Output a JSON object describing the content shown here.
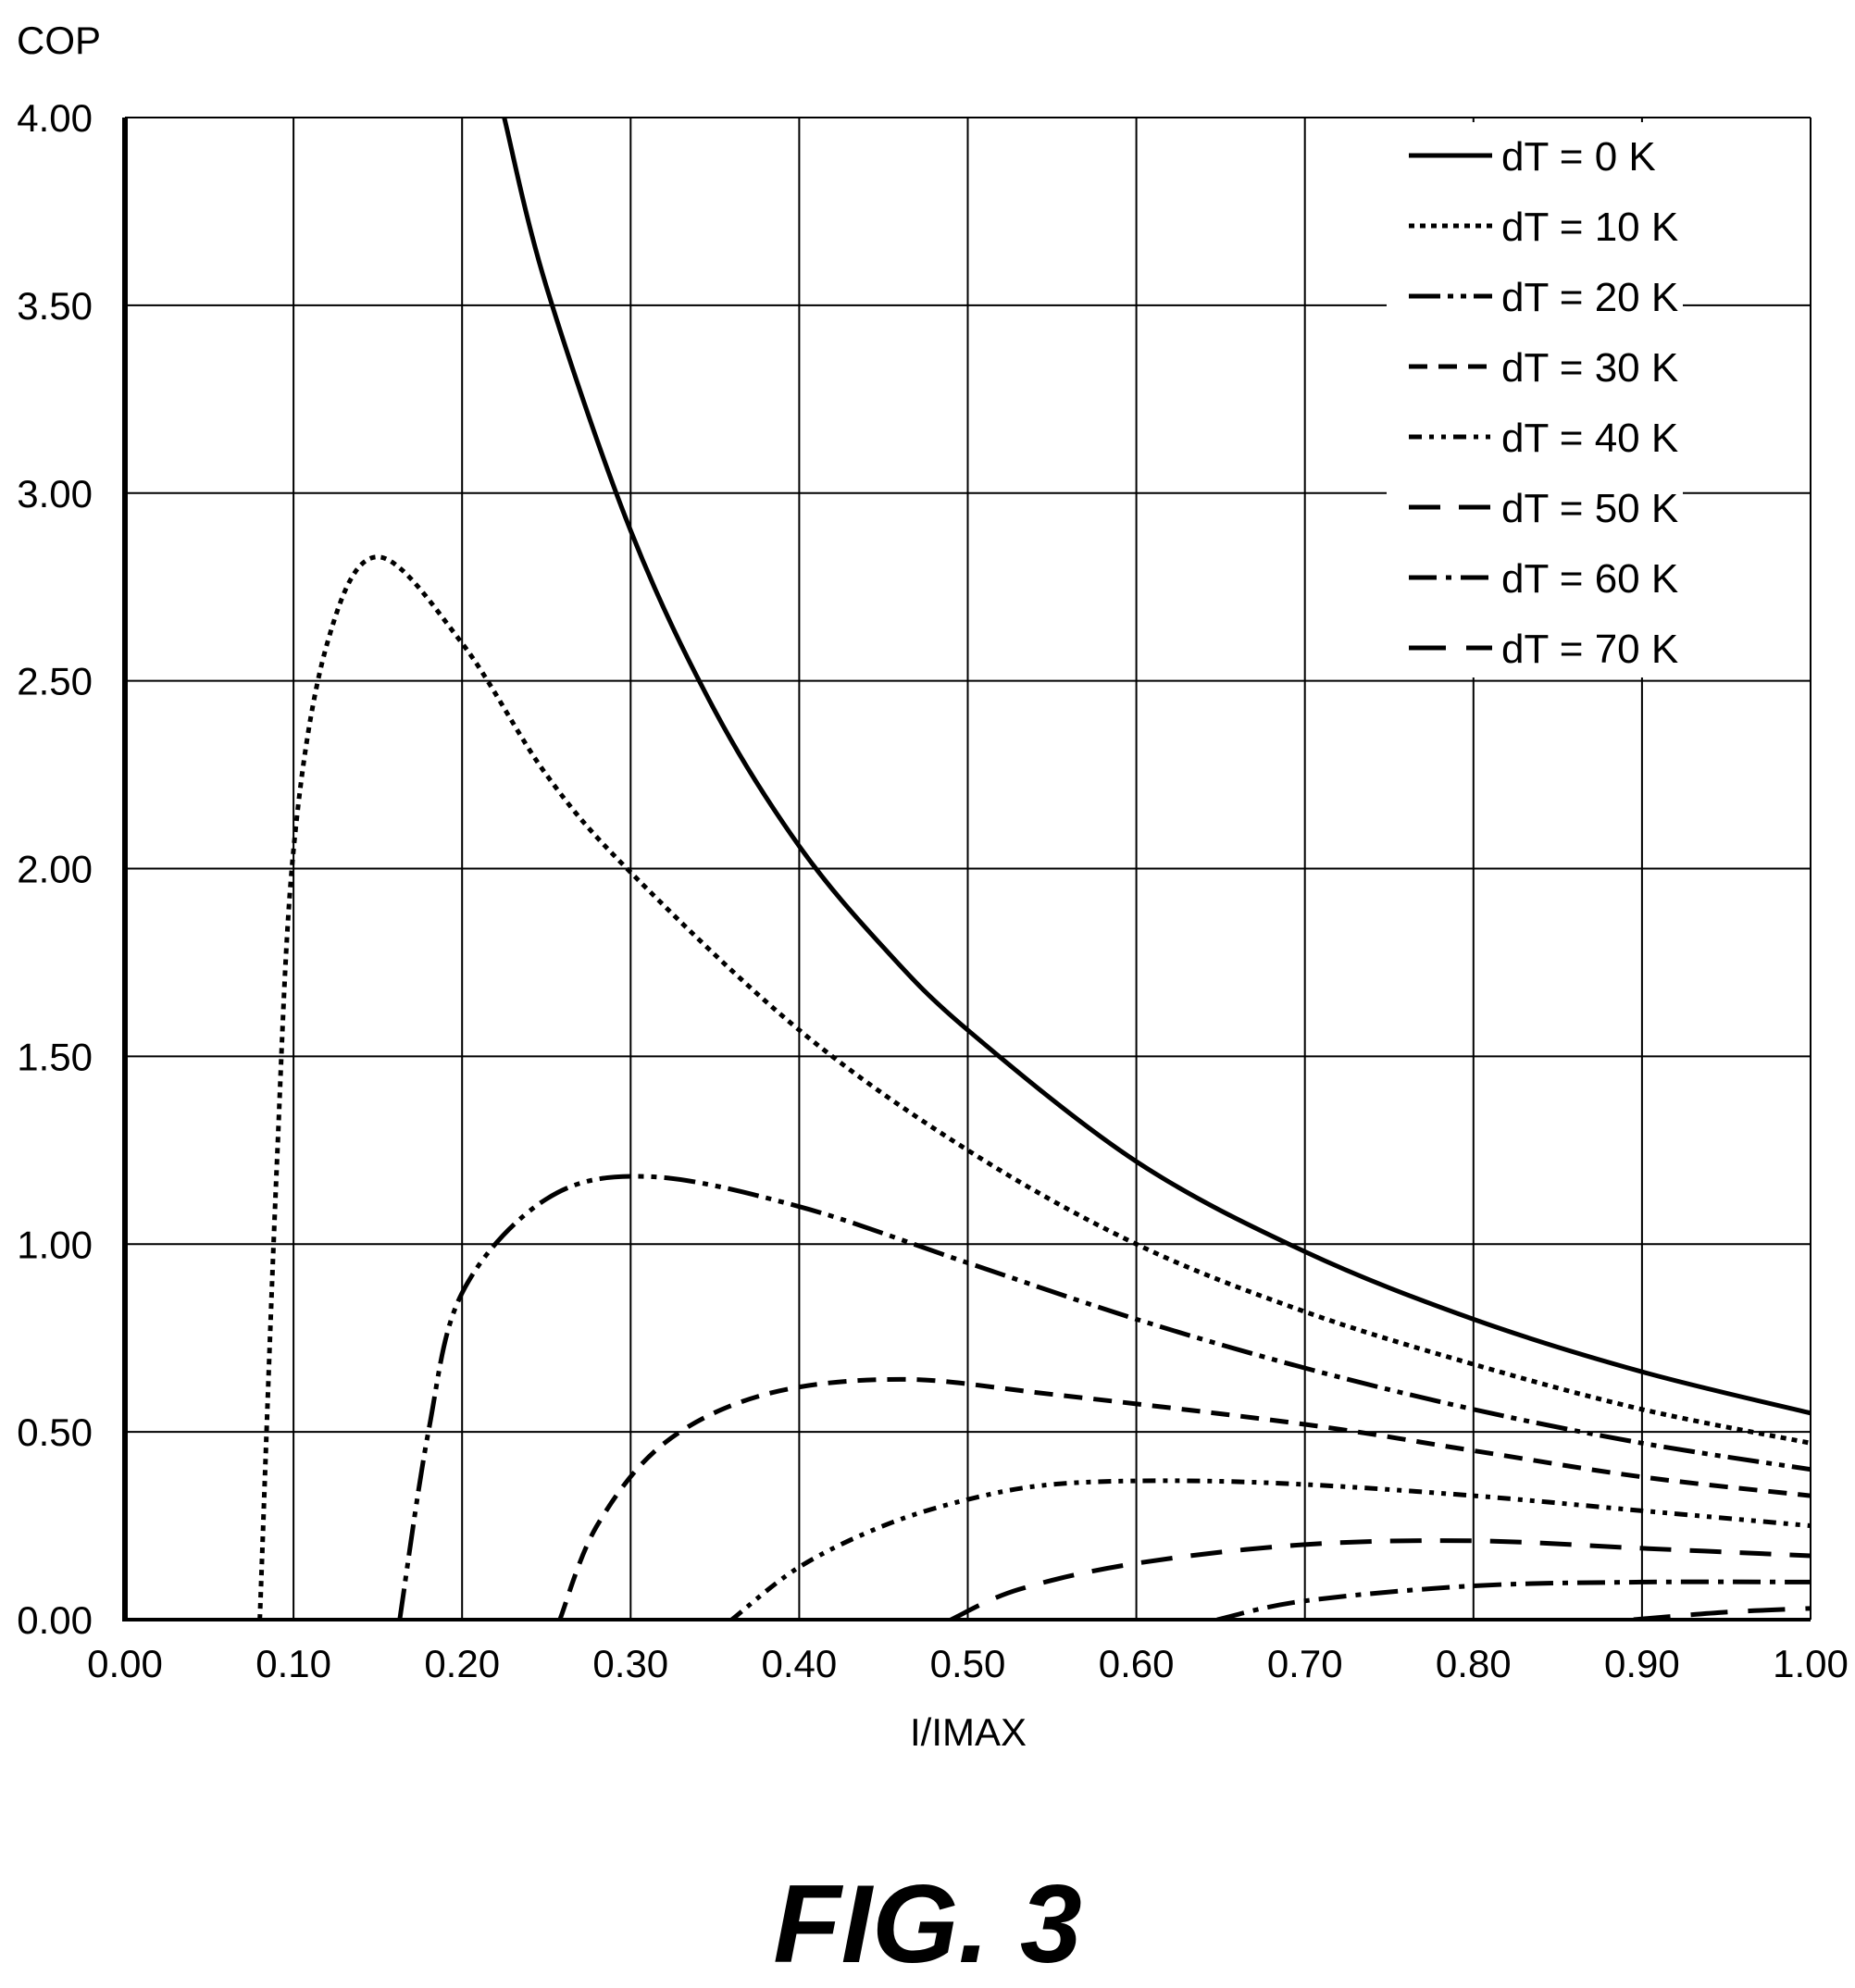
{
  "figure_caption": "FIG. 3",
  "chart_data": {
    "type": "line",
    "title": "",
    "xlabel": "I/IMAX",
    "ylabel": "COP",
    "xlim": [
      0,
      1
    ],
    "ylim": [
      0,
      4
    ],
    "x_ticks": [
      "0.00",
      "0.10",
      "0.20",
      "0.30",
      "0.40",
      "0.50",
      "0.60",
      "0.70",
      "0.80",
      "0.90",
      "1.00"
    ],
    "y_ticks": [
      "0.00",
      "0.50",
      "1.00",
      "1.50",
      "2.00",
      "2.50",
      "3.00",
      "3.50",
      "4.00"
    ],
    "grid": true,
    "legend_position": "top-right",
    "series": [
      {
        "name": "dT = 0 K",
        "style": "solid",
        "points": [
          [
            0.225,
            4.0
          ],
          [
            0.25,
            3.55
          ],
          [
            0.3,
            2.9
          ],
          [
            0.35,
            2.42
          ],
          [
            0.4,
            2.06
          ],
          [
            0.45,
            1.79
          ],
          [
            0.5,
            1.57
          ],
          [
            0.6,
            1.22
          ],
          [
            0.7,
            0.98
          ],
          [
            0.8,
            0.8
          ],
          [
            0.9,
            0.66
          ],
          [
            1.0,
            0.55
          ]
        ]
      },
      {
        "name": "dT = 10 K",
        "style": "dotted",
        "points": [
          [
            0.08,
            0.0
          ],
          [
            0.09,
            1.2
          ],
          [
            0.1,
            2.05
          ],
          [
            0.12,
            2.6
          ],
          [
            0.15,
            2.83
          ],
          [
            0.2,
            2.6
          ],
          [
            0.25,
            2.25
          ],
          [
            0.3,
            1.99
          ],
          [
            0.4,
            1.57
          ],
          [
            0.5,
            1.25
          ],
          [
            0.6,
            1.0
          ],
          [
            0.7,
            0.82
          ],
          [
            0.8,
            0.68
          ],
          [
            0.9,
            0.56
          ],
          [
            1.0,
            0.47
          ]
        ]
      },
      {
        "name": "dT = 20 K",
        "style": "dash-dot-dot",
        "points": [
          [
            0.163,
            0.0
          ],
          [
            0.18,
            0.5
          ],
          [
            0.2,
            0.87
          ],
          [
            0.25,
            1.12
          ],
          [
            0.31,
            1.18
          ],
          [
            0.4,
            1.1
          ],
          [
            0.5,
            0.95
          ],
          [
            0.6,
            0.8
          ],
          [
            0.7,
            0.67
          ],
          [
            0.8,
            0.56
          ],
          [
            0.9,
            0.47
          ],
          [
            1.0,
            0.4
          ]
        ]
      },
      {
        "name": "dT = 30 K",
        "style": "dashed",
        "points": [
          [
            0.258,
            0.0
          ],
          [
            0.28,
            0.25
          ],
          [
            0.32,
            0.47
          ],
          [
            0.38,
            0.6
          ],
          [
            0.46,
            0.64
          ],
          [
            0.55,
            0.6
          ],
          [
            0.7,
            0.52
          ],
          [
            0.8,
            0.45
          ],
          [
            0.9,
            0.38
          ],
          [
            1.0,
            0.33
          ]
        ]
      },
      {
        "name": "dT = 40 K",
        "style": "dash-dot-dot-short",
        "points": [
          [
            0.36,
            0.0
          ],
          [
            0.4,
            0.14
          ],
          [
            0.45,
            0.25
          ],
          [
            0.5,
            0.32
          ],
          [
            0.55,
            0.36
          ],
          [
            0.62,
            0.37
          ],
          [
            0.7,
            0.36
          ],
          [
            0.8,
            0.33
          ],
          [
            0.9,
            0.29
          ],
          [
            1.0,
            0.25
          ]
        ]
      },
      {
        "name": "dT = 50 K",
        "style": "long-dash",
        "points": [
          [
            0.49,
            0.0
          ],
          [
            0.53,
            0.08
          ],
          [
            0.6,
            0.15
          ],
          [
            0.7,
            0.2
          ],
          [
            0.8,
            0.21
          ],
          [
            0.9,
            0.19
          ],
          [
            1.0,
            0.17
          ]
        ]
      },
      {
        "name": "dT = 60 K",
        "style": "dash-dot",
        "points": [
          [
            0.648,
            0.0
          ],
          [
            0.7,
            0.05
          ],
          [
            0.8,
            0.09
          ],
          [
            0.9,
            0.1
          ],
          [
            1.0,
            0.1
          ]
        ]
      },
      {
        "name": "dT = 70 K",
        "style": "long-dash-gap",
        "points": [
          [
            0.895,
            0.0
          ],
          [
            0.95,
            0.02
          ],
          [
            1.0,
            0.03
          ]
        ]
      }
    ]
  }
}
